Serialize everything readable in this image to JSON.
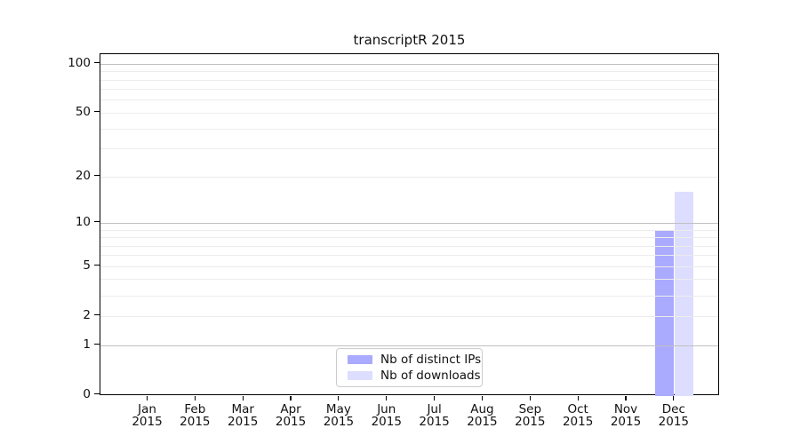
{
  "page": {
    "background": "#ffffff"
  },
  "chart_data": {
    "type": "bar",
    "title": "transcriptR 2015",
    "categories": [
      "Jan 2015",
      "Feb 2015",
      "Mar 2015",
      "Apr 2015",
      "May 2015",
      "Jun 2015",
      "Jul 2015",
      "Aug 2015",
      "Sep 2015",
      "Oct 2015",
      "Nov 2015",
      "Dec 2015"
    ],
    "series": [
      {
        "id": "distinct-ips",
        "name": "Nb of distinct IPs",
        "color": "#aaaaff",
        "values": [
          0,
          0,
          0,
          0,
          0,
          0,
          0,
          0,
          0,
          0,
          0,
          9
        ]
      },
      {
        "id": "downloads",
        "name": "Nb of downloads",
        "color": "#ddddff",
        "values": [
          0,
          0,
          0,
          0,
          0,
          0,
          0,
          0,
          0,
          0,
          0,
          16
        ]
      }
    ],
    "xlabel": "",
    "ylabel": "",
    "yscale": "log1p",
    "y_tick_labels": [
      0,
      1,
      2,
      5,
      10,
      20,
      50,
      100
    ],
    "y_major_gridlines": [
      1,
      10,
      100
    ],
    "y_minor_gridlines": [
      2,
      3,
      4,
      5,
      6,
      7,
      8,
      9,
      20,
      30,
      40,
      50,
      60,
      70,
      80,
      90
    ],
    "ylim": [
      0,
      113
    ],
    "grid": true,
    "grid_above_bars": true,
    "legend_position": "bottom-center"
  },
  "legend": {
    "items": [
      {
        "label": "Nb of distinct IPs",
        "color": "#aaaaff"
      },
      {
        "label": "Nb of downloads",
        "color": "#ddddff"
      }
    ]
  },
  "colors": {
    "frame": "#000000",
    "grid_major": "#c0c0c0",
    "grid_minor": "#ececec",
    "text": "#111111",
    "legend_border": "#cccccc"
  }
}
